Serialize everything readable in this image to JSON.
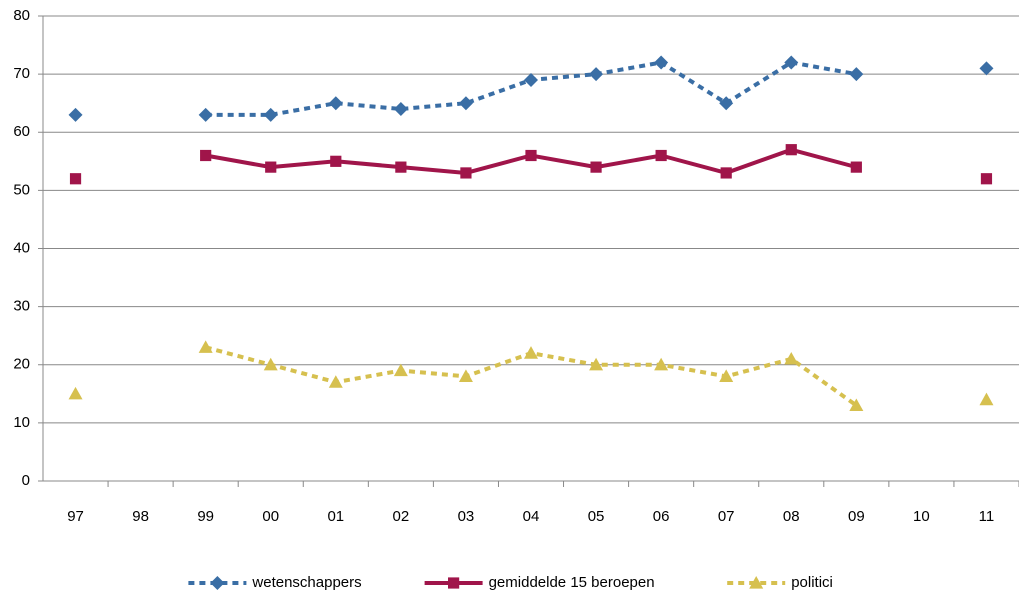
{
  "chart_data": {
    "type": "line",
    "categories": [
      "97",
      "98",
      "99",
      "00",
      "01",
      "02",
      "03",
      "04",
      "05",
      "06",
      "07",
      "08",
      "09",
      "10",
      "11"
    ],
    "series": [
      {
        "name": "wetenschappers",
        "color": "#3a6ea5",
        "dashed": true,
        "marker": "diamond",
        "values": [
          63,
          null,
          63,
          63,
          65,
          64,
          65,
          69,
          70,
          72,
          65,
          72,
          70,
          null,
          71
        ]
      },
      {
        "name": "gemiddelde 15 beroepen",
        "color": "#a0154a",
        "dashed": false,
        "marker": "square",
        "values": [
          52,
          null,
          56,
          54,
          55,
          54,
          53,
          56,
          54,
          56,
          53,
          57,
          54,
          null,
          52
        ]
      },
      {
        "name": "politici",
        "color": "#d6c04f",
        "dashed": true,
        "marker": "triangle",
        "values": [
          15,
          null,
          23,
          20,
          17,
          19,
          18,
          22,
          20,
          20,
          18,
          21,
          13,
          null,
          14
        ]
      }
    ],
    "ylim": [
      0,
      80
    ],
    "yticks": [
      0,
      10,
      20,
      30,
      40,
      50,
      60,
      70,
      80
    ],
    "grid": true,
    "legend": "bottom"
  }
}
